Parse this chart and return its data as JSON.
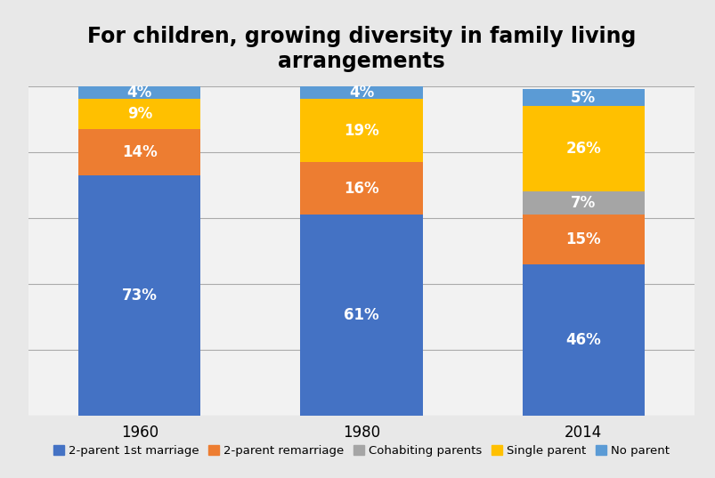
{
  "title": "For children, growing diversity in family living\narrangements",
  "categories": [
    "1960",
    "1980",
    "2014"
  ],
  "segments": {
    "2-parent 1st marriage": [
      73,
      61,
      46
    ],
    "2-parent remarriage": [
      14,
      16,
      15
    ],
    "Cohabiting parents": [
      0,
      0,
      7
    ],
    "Single parent": [
      9,
      19,
      26
    ],
    "No parent": [
      4,
      4,
      5
    ]
  },
  "colors": {
    "2-parent 1st marriage": "#4472C4",
    "2-parent remarriage": "#ED7D31",
    "Cohabiting parents": "#A5A5A5",
    "Single parent": "#FFC000",
    "No parent": "#5B9BD5"
  },
  "labels": {
    "2-parent 1st marriage": [
      "73%",
      "61%",
      "46%"
    ],
    "2-parent remarriage": [
      "14%",
      "16%",
      "15%"
    ],
    "Cohabiting parents": [
      "",
      "",
      "7%"
    ],
    "Single parent": [
      "9%",
      "19%",
      "26%"
    ],
    "No parent": [
      "4%",
      "4%",
      "5%"
    ]
  },
  "background_color": "#E8E8E8",
  "plot_background_color": "#F2F2F2",
  "bar_width": 0.55,
  "ylim": [
    0,
    100
  ],
  "yticks": [
    0,
    20,
    40,
    60,
    80,
    100
  ],
  "title_fontsize": 17,
  "label_fontsize": 12,
  "legend_fontsize": 9.5,
  "bar_positions": [
    0.5,
    1.5,
    2.5
  ],
  "xlim": [
    0,
    3
  ]
}
